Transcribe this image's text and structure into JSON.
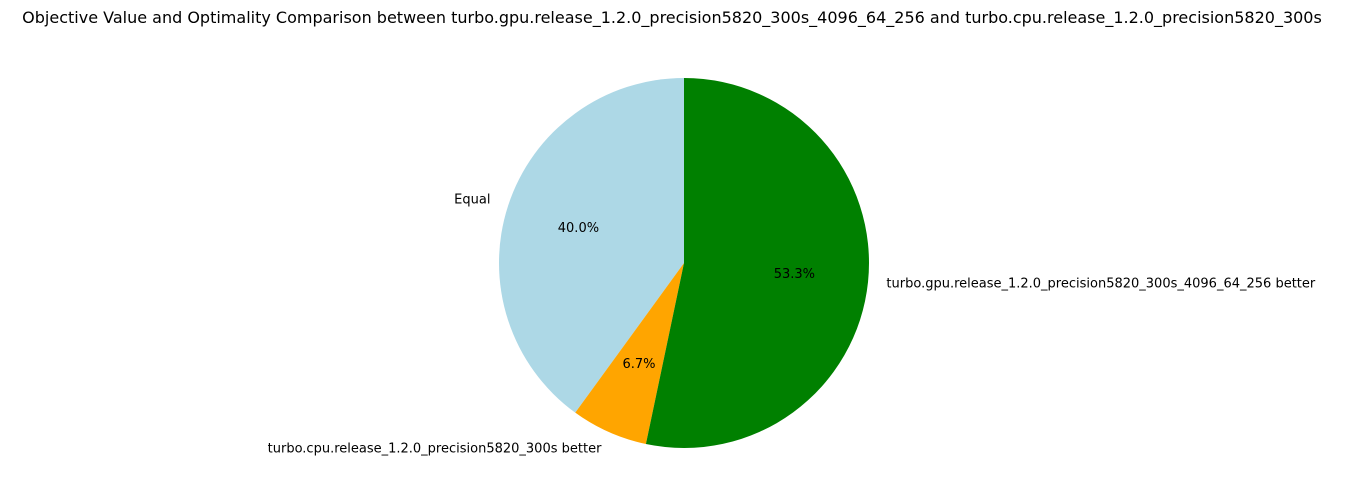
{
  "chart_data": {
    "type": "pie",
    "title": "Objective Value and Optimality Comparison between turbo.gpu.release_1.2.0_precision5820_300s_4096_64_256 and turbo.cpu.release_1.2.0_precision5820_300s",
    "start_angle_deg": 90,
    "direction": "counterclockwise",
    "slices": [
      {
        "label": "Equal",
        "value": 40.0,
        "pct_label": "40.0%",
        "color": "#add8e6"
      },
      {
        "label": "turbo.cpu.release_1.2.0_precision5820_300s better",
        "value": 6.7,
        "pct_label": "6.7%",
        "color": "#ffa500"
      },
      {
        "label": "turbo.gpu.release_1.2.0_precision5820_300s_4096_64_256 better",
        "value": 53.3,
        "pct_label": "53.3%",
        "color": "#008000"
      }
    ]
  }
}
